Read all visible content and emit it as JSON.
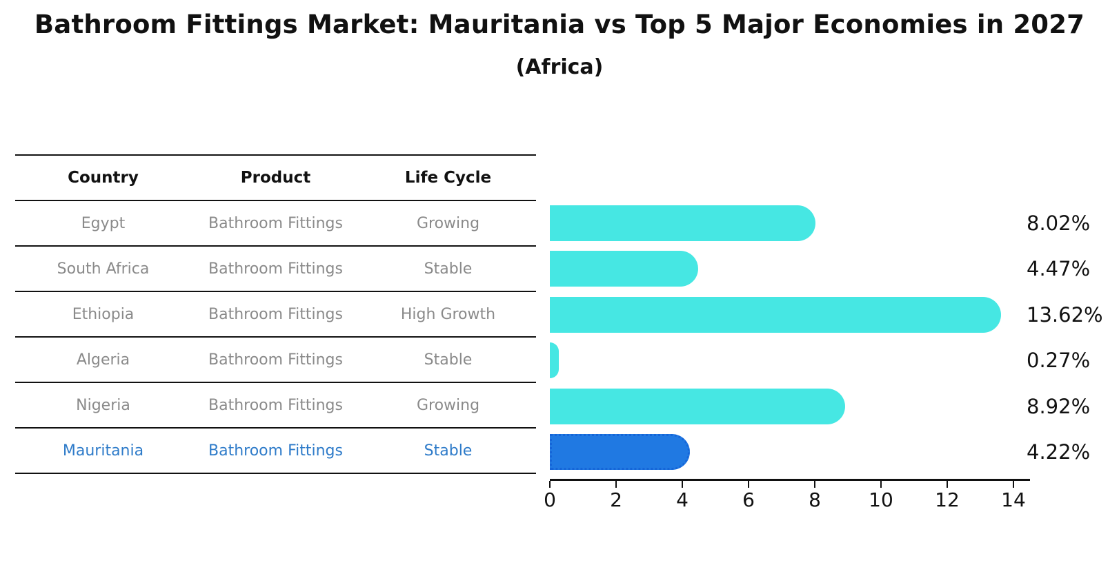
{
  "title": "Bathroom Fittings Market: Mauritania vs Top 5 Major Economies in 2027",
  "subtitle": "(Africa)",
  "table": {
    "columns": [
      "Country",
      "Product",
      "Life Cycle"
    ],
    "rows": [
      {
        "country": "Egypt",
        "product": "Bathroom Fittings",
        "life_cycle": "Growing",
        "highlight": false
      },
      {
        "country": "South Africa",
        "product": "Bathroom Fittings",
        "life_cycle": "Stable",
        "highlight": false
      },
      {
        "country": "Ethiopia",
        "product": "Bathroom Fittings",
        "life_cycle": "High Growth",
        "highlight": false
      },
      {
        "country": "Algeria",
        "product": "Bathroom Fittings",
        "life_cycle": "Stable",
        "highlight": false
      },
      {
        "country": "Nigeria",
        "product": "Bathroom Fittings",
        "life_cycle": "Growing",
        "highlight": false
      },
      {
        "country": "Mauritania",
        "product": "Bathroom Fittings",
        "life_cycle": "Stable",
        "highlight": true
      }
    ]
  },
  "chart_data": {
    "type": "bar",
    "orientation": "horizontal",
    "title": "Bathroom Fittings Market: Mauritania vs Top 5 Major Economies in 2027 (Africa)",
    "categories": [
      "Egypt",
      "South Africa",
      "Ethiopia",
      "Algeria",
      "Nigeria",
      "Mauritania"
    ],
    "values": [
      8.02,
      4.47,
      13.62,
      0.27,
      8.92,
      4.22
    ],
    "value_labels": [
      "8.02%",
      "4.47%",
      "13.62%",
      "0.27%",
      "8.92%",
      "4.22%"
    ],
    "x_ticks": [
      0,
      2,
      4,
      6,
      8,
      10,
      12,
      14
    ],
    "xlim": [
      0,
      14.5
    ],
    "grid": false,
    "legend": "none",
    "highlight_index": 5
  },
  "colors": {
    "bar_default": "#46e7e3",
    "bar_highlight_fill": "#2079e2",
    "bar_highlight_border": "#1565d8",
    "highlight_text": "#2e7bc9",
    "row_text": "#8a8a8a",
    "axis": "#111111"
  }
}
